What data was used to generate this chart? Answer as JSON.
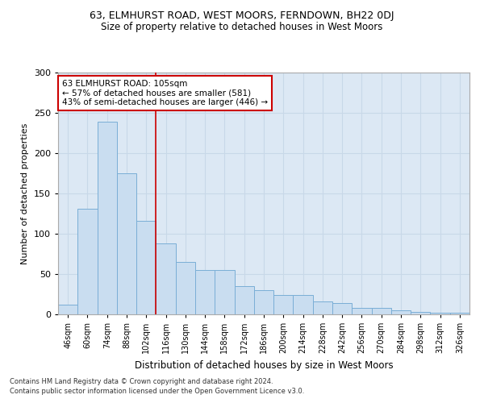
{
  "title1": "63, ELMHURST ROAD, WEST MOORS, FERNDOWN, BH22 0DJ",
  "title2": "Size of property relative to detached houses in West Moors",
  "xlabel": "Distribution of detached houses by size in West Moors",
  "ylabel": "Number of detached properties",
  "categories": [
    "46sqm",
    "60sqm",
    "74sqm",
    "88sqm",
    "102sqm",
    "116sqm",
    "130sqm",
    "144sqm",
    "158sqm",
    "172sqm",
    "186sqm",
    "200sqm",
    "214sqm",
    "228sqm",
    "242sqm",
    "256sqm",
    "270sqm",
    "284sqm",
    "298sqm",
    "312sqm",
    "326sqm"
  ],
  "values": [
    12,
    131,
    239,
    175,
    116,
    88,
    65,
    55,
    55,
    35,
    30,
    24,
    24,
    16,
    14,
    8,
    8,
    5,
    3,
    2,
    2
  ],
  "bar_color": "#c9ddf0",
  "bar_edge_color": "#7aaed6",
  "vline_x": 4.5,
  "vline_color": "#cc0000",
  "annotation_text": "63 ELMHURST ROAD: 105sqm\n← 57% of detached houses are smaller (581)\n43% of semi-detached houses are larger (446) →",
  "annotation_box_color": "#ffffff",
  "annotation_box_edge": "#cc0000",
  "ylim": [
    0,
    300
  ],
  "yticks": [
    0,
    50,
    100,
    150,
    200,
    250,
    300
  ],
  "footer1": "Contains HM Land Registry data © Crown copyright and database right 2024.",
  "footer2": "Contains public sector information licensed under the Open Government Licence v3.0.",
  "bg_color": "#ffffff",
  "grid_color": "#c8d8e8",
  "ax_bg_color": "#dce8f4"
}
